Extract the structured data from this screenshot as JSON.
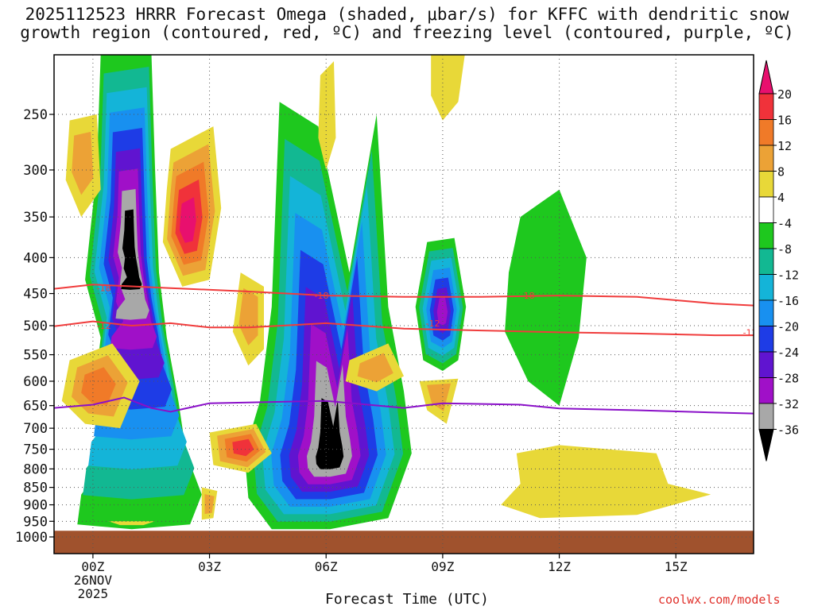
{
  "chart_data": {
    "type": "heatmap",
    "title_line1": "2025112523 HRRR Forecast Omega (shaded, μbar/s) for KFFC with dendritic snow",
    "title_line2": "growth region (contoured, red, ºC) and freezing level (contoured, purple, ºC)",
    "xlabel": "Forecast Time (UTC)",
    "ylabel": "",
    "x_ticks": [
      "00Z",
      "03Z",
      "06Z",
      "09Z",
      "12Z",
      "15Z"
    ],
    "x_tick_hours": [
      0,
      3,
      6,
      9,
      12,
      15
    ],
    "x_date_label": [
      "26NOV",
      "2025"
    ],
    "xlim": [
      -1,
      17
    ],
    "y_ticks": [
      250,
      300,
      350,
      400,
      450,
      500,
      550,
      600,
      650,
      700,
      750,
      800,
      850,
      900,
      950,
      1000
    ],
    "ylim": [
      1000,
      200
    ],
    "colorbar": {
      "labels": [
        "20",
        "16",
        "12",
        "8",
        "4",
        "-4",
        "-8",
        "-12",
        "-16",
        "-20",
        "-24",
        "-28",
        "-32",
        "-36"
      ],
      "colors": [
        "#e8106e",
        "#f0323a",
        "#f07a28",
        "#eca236",
        "#e8d838",
        "#ffffff",
        "#1ec81e",
        "#12b892",
        "#14b4d8",
        "#1890f0",
        "#1e3ce6",
        "#6014d0",
        "#a010c8",
        "#a8a8a8",
        "#000000"
      ]
    },
    "dgz_contours": [
      {
        "name": "-18",
        "label": "-18",
        "x": [
          -1,
          0,
          2,
          4,
          6,
          8,
          10,
          12,
          14,
          16,
          17
        ],
        "p": [
          443,
          437,
          442,
          447,
          453,
          455,
          455,
          453,
          455,
          465,
          468
        ]
      },
      {
        "name": "-12",
        "label": "-12",
        "x": [
          -1,
          0,
          1,
          2,
          3,
          4,
          6,
          8,
          10,
          12,
          14,
          16,
          17
        ],
        "p": [
          501,
          493,
          500,
          496,
          503,
          503,
          496,
          505,
          508,
          511,
          513,
          516,
          516
        ]
      }
    ],
    "freezing_level": {
      "name": "0",
      "x": [
        -1,
        0,
        0.8,
        1.5,
        2,
        3,
        6,
        8,
        9,
        11,
        12,
        14,
        16,
        17
      ],
      "p": [
        655,
        648,
        633,
        655,
        663,
        645,
        640,
        655,
        645,
        648,
        656,
        660,
        665,
        667
      ]
    },
    "terrain_top_hpa": 980,
    "omega_features": [
      {
        "name": "upward-motion-core-0130z",
        "x": 0.95,
        "p": 375,
        "value": -36
      },
      {
        "name": "upward-motion-core-0630z",
        "x": 6.1,
        "p": 770,
        "value": -36
      },
      {
        "name": "downward-motion-max-0230z",
        "x": 2.3,
        "p": 360,
        "value": 20
      },
      {
        "name": "upward-motion-0900z",
        "x": 9.0,
        "p": 475,
        "value": -28
      },
      {
        "name": "upward-band-1130z",
        "x": 11.7,
        "p": 480,
        "value": -8
      }
    ]
  },
  "credit": "coolwx.com/models"
}
